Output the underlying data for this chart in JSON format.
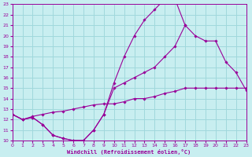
{
  "xlabel": "Windchill (Refroidissement éolien,°C)",
  "bg_color": "#c8eef0",
  "grid_color": "#a0d8dc",
  "line_color": "#990099",
  "xlim": [
    0,
    23
  ],
  "ylim": [
    10,
    23
  ],
  "yticks": [
    10,
    11,
    12,
    13,
    14,
    15,
    16,
    17,
    18,
    19,
    20,
    21,
    22,
    23
  ],
  "xticks": [
    0,
    1,
    2,
    3,
    4,
    5,
    6,
    7,
    8,
    9,
    10,
    11,
    12,
    13,
    14,
    15,
    16,
    17,
    18,
    19,
    20,
    21,
    22,
    23
  ],
  "curveA_x": [
    0,
    1,
    2,
    3,
    4,
    5,
    6,
    7,
    8,
    9,
    10,
    11,
    12,
    13,
    14,
    15,
    16,
    17
  ],
  "curveA_y": [
    12.5,
    12.0,
    12.2,
    11.5,
    10.5,
    10.2,
    10.0,
    10.0,
    11.0,
    12.5,
    15.5,
    18.0,
    20.0,
    21.5,
    22.5,
    23.5,
    23.5,
    21.0
  ],
  "curveB_x": [
    0,
    1,
    2,
    3,
    4,
    5,
    6,
    7,
    8,
    9,
    10,
    11,
    12,
    13,
    14,
    15,
    16,
    17,
    18,
    19,
    20,
    21,
    22,
    23
  ],
  "curveB_y": [
    12.5,
    12.0,
    12.2,
    11.5,
    10.5,
    10.2,
    10.0,
    10.0,
    11.0,
    12.5,
    15.0,
    15.5,
    16.0,
    16.5,
    17.0,
    18.0,
    19.0,
    21.0,
    20.0,
    19.5,
    19.5,
    17.5,
    16.5,
    14.8
  ],
  "curveC_x": [
    0,
    1,
    2,
    3,
    4,
    5,
    6,
    7,
    8,
    9,
    10,
    11,
    12,
    13,
    14,
    15,
    16,
    17,
    18,
    19,
    20,
    21,
    22,
    23
  ],
  "curveC_y": [
    12.5,
    12.0,
    12.3,
    12.5,
    12.7,
    12.8,
    13.0,
    13.2,
    13.4,
    13.5,
    13.5,
    13.7,
    14.0,
    14.0,
    14.2,
    14.5,
    14.7,
    15.0,
    15.0,
    15.0,
    15.0,
    15.0,
    15.0,
    15.0
  ]
}
